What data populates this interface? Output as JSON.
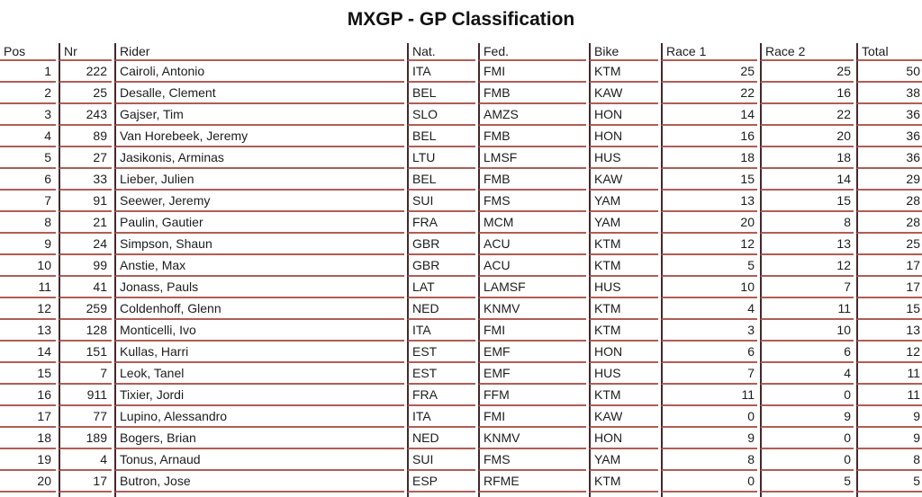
{
  "title": "MXGP - GP Classification",
  "table": {
    "columns": [
      {
        "key": "pos",
        "label": "Pos"
      },
      {
        "key": "nr",
        "label": "Nr"
      },
      {
        "key": "rider",
        "label": "Rider"
      },
      {
        "key": "nat",
        "label": "Nat."
      },
      {
        "key": "fed",
        "label": "Fed."
      },
      {
        "key": "bike",
        "label": "Bike"
      },
      {
        "key": "race1",
        "label": "Race 1"
      },
      {
        "key": "race2",
        "label": "Race 2"
      },
      {
        "key": "total",
        "label": "Total"
      }
    ],
    "rows": [
      {
        "pos": "1",
        "nr": "222",
        "rider": "Cairoli, Antonio",
        "nat": "ITA",
        "fed": "FMI",
        "bike": "KTM",
        "race1": "25",
        "race2": "25",
        "total": "50"
      },
      {
        "pos": "2",
        "nr": "25",
        "rider": "Desalle, Clement",
        "nat": "BEL",
        "fed": "FMB",
        "bike": "KAW",
        "race1": "22",
        "race2": "16",
        "total": "38"
      },
      {
        "pos": "3",
        "nr": "243",
        "rider": "Gajser, Tim",
        "nat": "SLO",
        "fed": "AMZS",
        "bike": "HON",
        "race1": "14",
        "race2": "22",
        "total": "36"
      },
      {
        "pos": "4",
        "nr": "89",
        "rider": "Van Horebeek, Jeremy",
        "nat": "BEL",
        "fed": "FMB",
        "bike": "HON",
        "race1": "16",
        "race2": "20",
        "total": "36"
      },
      {
        "pos": "5",
        "nr": "27",
        "rider": "Jasikonis, Arminas",
        "nat": "LTU",
        "fed": "LMSF",
        "bike": "HUS",
        "race1": "18",
        "race2": "18",
        "total": "36"
      },
      {
        "pos": "6",
        "nr": "33",
        "rider": "Lieber, Julien",
        "nat": "BEL",
        "fed": "FMB",
        "bike": "KAW",
        "race1": "15",
        "race2": "14",
        "total": "29"
      },
      {
        "pos": "7",
        "nr": "91",
        "rider": "Seewer, Jeremy",
        "nat": "SUI",
        "fed": "FMS",
        "bike": "YAM",
        "race1": "13",
        "race2": "15",
        "total": "28"
      },
      {
        "pos": "8",
        "nr": "21",
        "rider": "Paulin, Gautier",
        "nat": "FRA",
        "fed": "MCM",
        "bike": "YAM",
        "race1": "20",
        "race2": "8",
        "total": "28"
      },
      {
        "pos": "9",
        "nr": "24",
        "rider": "Simpson, Shaun",
        "nat": "GBR",
        "fed": "ACU",
        "bike": "KTM",
        "race1": "12",
        "race2": "13",
        "total": "25"
      },
      {
        "pos": "10",
        "nr": "99",
        "rider": "Anstie, Max",
        "nat": "GBR",
        "fed": "ACU",
        "bike": "KTM",
        "race1": "5",
        "race2": "12",
        "total": "17"
      },
      {
        "pos": "11",
        "nr": "41",
        "rider": "Jonass, Pauls",
        "nat": "LAT",
        "fed": "LAMSF",
        "bike": "HUS",
        "race1": "10",
        "race2": "7",
        "total": "17"
      },
      {
        "pos": "12",
        "nr": "259",
        "rider": "Coldenhoff, Glenn",
        "nat": "NED",
        "fed": "KNMV",
        "bike": "KTM",
        "race1": "4",
        "race2": "11",
        "total": "15"
      },
      {
        "pos": "13",
        "nr": "128",
        "rider": "Monticelli, Ivo",
        "nat": "ITA",
        "fed": "FMI",
        "bike": "KTM",
        "race1": "3",
        "race2": "10",
        "total": "13"
      },
      {
        "pos": "14",
        "nr": "151",
        "rider": "Kullas, Harri",
        "nat": "EST",
        "fed": "EMF",
        "bike": "HON",
        "race1": "6",
        "race2": "6",
        "total": "12"
      },
      {
        "pos": "15",
        "nr": "7",
        "rider": "Leok, Tanel",
        "nat": "EST",
        "fed": "EMF",
        "bike": "HUS",
        "race1": "7",
        "race2": "4",
        "total": "11"
      },
      {
        "pos": "16",
        "nr": "911",
        "rider": "Tixier, Jordi",
        "nat": "FRA",
        "fed": "FFM",
        "bike": "KTM",
        "race1": "11",
        "race2": "0",
        "total": "11"
      },
      {
        "pos": "17",
        "nr": "77",
        "rider": "Lupino, Alessandro",
        "nat": "ITA",
        "fed": "FMI",
        "bike": "KAW",
        "race1": "0",
        "race2": "9",
        "total": "9"
      },
      {
        "pos": "18",
        "nr": "189",
        "rider": "Bogers, Brian",
        "nat": "NED",
        "fed": "KNMV",
        "bike": "HON",
        "race1": "9",
        "race2": "0",
        "total": "9"
      },
      {
        "pos": "19",
        "nr": "4",
        "rider": "Tonus, Arnaud",
        "nat": "SUI",
        "fed": "FMS",
        "bike": "YAM",
        "race1": "8",
        "race2": "0",
        "total": "8"
      },
      {
        "pos": "20",
        "nr": "17",
        "rider": "Butron, Jose",
        "nat": "ESP",
        "fed": "RFME",
        "bike": "KTM",
        "race1": "0",
        "race2": "5",
        "total": "5"
      }
    ]
  },
  "colors": {
    "horizontal_rule": "#b25c55",
    "vertical_rule": "#44282a",
    "text": "#1c1c1c",
    "background": "#ffffff"
  }
}
